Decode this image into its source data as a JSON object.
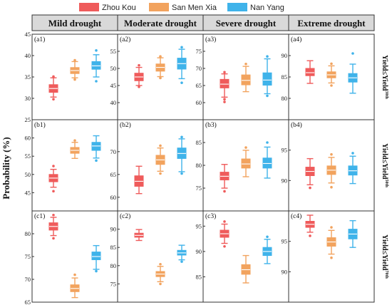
{
  "chart_data": {
    "type": "boxplot",
    "ylabel": "Probability (%)",
    "legend": [
      {
        "name": "Zhou Kou",
        "color": "#ef5b5b"
      },
      {
        "name": "San Men Xia",
        "color": "#f2a35e"
      },
      {
        "name": "Nan Yang",
        "color": "#3fb3ea"
      }
    ],
    "columns": [
      "Mild drought",
      "Moderate drought",
      "Severe  drought",
      "Extreme  drought"
    ],
    "rows": [
      {
        "label_pre": "Yield≤Yield",
        "label_sup": "30th"
      },
      {
        "label_pre": "Yield≤Yield",
        "label_sup": "50th"
      },
      {
        "label_pre": "Yield≤Yield",
        "label_sup": "70th"
      }
    ],
    "panels": [
      {
        "id": "(a1)",
        "row": 0,
        "col": 0,
        "ylim": [
          25,
          45
        ],
        "ticks": [
          25,
          30,
          35,
          40,
          45
        ],
        "tick_labels": [
          "25",
          "30",
          "35",
          "40",
          "45"
        ],
        "boxes": [
          {
            "series": "Zhou Kou",
            "whisker_low": 30.3,
            "q1": 31.4,
            "median": 32.3,
            "q3": 33.2,
            "whisker_high": 34.8,
            "outliers": [
              29.8,
              35.1
            ]
          },
          {
            "series": "San Men Xia",
            "whisker_low": 34.8,
            "q1": 35.8,
            "median": 36.5,
            "q3": 37.2,
            "whisker_high": 38.6,
            "outliers": [
              34.4,
              38.9
            ]
          },
          {
            "series": "Nan Yang",
            "whisker_low": 35.0,
            "q1": 36.8,
            "median": 37.6,
            "q3": 38.6,
            "whisker_high": 40.2,
            "outliers": [
              34.0,
              41.2
            ]
          }
        ]
      },
      {
        "id": "(a2)",
        "row": 0,
        "col": 1,
        "ylim": [
          35,
          60
        ],
        "ticks": [
          40,
          45,
          50,
          55
        ],
        "tick_labels": [
          "40",
          "45",
          "50",
          "55"
        ],
        "boxes": [
          {
            "series": "Zhou Kou",
            "whisker_low": 45.0,
            "q1": 46.4,
            "median": 47.5,
            "q3": 48.6,
            "whisker_high": 50.3,
            "outliers": [
              44.6,
              50.9
            ]
          },
          {
            "series": "San Men Xia",
            "whisker_low": 47.6,
            "q1": 49.2,
            "median": 50.3,
            "q3": 51.3,
            "whisker_high": 53.1,
            "outliers": [
              47.2,
              53.5
            ]
          },
          {
            "series": "Nan Yang",
            "whisker_low": 47.0,
            "q1": 49.8,
            "median": 51.4,
            "q3": 53.0,
            "whisker_high": 55.6,
            "outliers": [
              45.8,
              56.2
            ]
          }
        ]
      },
      {
        "id": "(a3)",
        "row": 0,
        "col": 2,
        "ylim": [
          55,
          80
        ],
        "ticks": [
          60,
          65,
          70,
          75
        ],
        "tick_labels": [
          "60",
          "65",
          "70",
          "75"
        ],
        "boxes": [
          {
            "series": "Zhou Kou",
            "whisker_low": 61.6,
            "q1": 64.3,
            "median": 65.4,
            "q3": 66.8,
            "whisker_high": 68.4,
            "outliers": [
              60.2,
              61.0,
              68.9
            ]
          },
          {
            "series": "San Men Xia",
            "whisker_low": 63.2,
            "q1": 65.2,
            "median": 66.5,
            "q3": 68.1,
            "whisker_high": 70.6,
            "outliers": [
              71.3
            ]
          },
          {
            "series": "Nan Yang",
            "whisker_low": 62.6,
            "q1": 65.1,
            "median": 66.6,
            "q3": 68.7,
            "whisker_high": 72.8,
            "outliers": [
              62.0,
              73.5
            ]
          }
        ]
      },
      {
        "id": "(a4)",
        "row": 0,
        "col": 3,
        "ylim": [
          75,
          95
        ],
        "ticks": [
          80,
          85,
          90
        ],
        "tick_labels": [
          "80",
          "85",
          "90"
        ],
        "boxes": [
          {
            "series": "Zhou Kou",
            "whisker_low": 83.5,
            "q1": 85.3,
            "median": 86.0,
            "q3": 87.0,
            "whisker_high": 88.8,
            "outliers": []
          },
          {
            "series": "San Men Xia",
            "whisker_low": 83.6,
            "q1": 84.8,
            "median": 85.5,
            "q3": 86.2,
            "whisker_high": 87.6,
            "outliers": [
              83.0,
              88.1
            ]
          },
          {
            "series": "Nan Yang",
            "whisker_low": 81.2,
            "q1": 83.8,
            "median": 84.8,
            "q3": 85.8,
            "whisker_high": 88.0,
            "outliers": [
              90.5
            ]
          }
        ]
      },
      {
        "id": "(b1)",
        "row": 1,
        "col": 0,
        "ylim": [
          40,
          65
        ],
        "ticks": [
          45,
          50,
          55,
          60
        ],
        "tick_labels": [
          "45",
          "50",
          "55",
          "60"
        ],
        "boxes": [
          {
            "series": "Zhou Kou",
            "whisker_low": 46.5,
            "q1": 48.0,
            "median": 49.0,
            "q3": 50.0,
            "whisker_high": 51.4,
            "outliers": [
              45.4,
              52.3
            ]
          },
          {
            "series": "San Men Xia",
            "whisker_low": 54.4,
            "q1": 55.8,
            "median": 56.6,
            "q3": 57.4,
            "whisker_high": 58.8,
            "outliers": [
              59.3
            ]
          },
          {
            "series": "Nan Yang",
            "whisker_low": 54.5,
            "q1": 56.6,
            "median": 57.8,
            "q3": 58.8,
            "whisker_high": 60.6,
            "outliers": [
              53.8
            ]
          }
        ]
      },
      {
        "id": "(b2)",
        "row": 1,
        "col": 1,
        "ylim": [
          57,
          77
        ],
        "ticks": [
          60,
          65,
          70
        ],
        "tick_labels": [
          "60",
          "65",
          "70"
        ],
        "boxes": [
          {
            "series": "Zhou Kou",
            "whisker_low": 60.8,
            "q1": 62.4,
            "median": 63.5,
            "q3": 64.7,
            "whisker_high": 66.8,
            "outliers": []
          },
          {
            "series": "San Men Xia",
            "whisker_low": 65.7,
            "q1": 67.2,
            "median": 68.2,
            "q3": 69.2,
            "whisker_high": 70.8,
            "outliers": [
              65.2,
              71.3
            ]
          },
          {
            "series": "Nan Yang",
            "whisker_low": 65.6,
            "q1": 68.5,
            "median": 69.6,
            "q3": 70.8,
            "whisker_high": 72.8,
            "outliers": [
              65.2,
              73.2
            ]
          }
        ]
      },
      {
        "id": "(b3)",
        "row": 1,
        "col": 2,
        "ylim": [
          70,
          90
        ],
        "ticks": [
          75,
          80,
          85
        ],
        "tick_labels": [
          "75",
          "80",
          "85"
        ],
        "boxes": [
          {
            "series": "Zhou Kou",
            "whisker_low": 75.0,
            "q1": 76.8,
            "median": 77.6,
            "q3": 78.5,
            "whisker_high": 80.2,
            "outliers": [
              74.3
            ]
          },
          {
            "series": "San Men Xia",
            "whisker_low": 77.5,
            "q1": 79.4,
            "median": 80.3,
            "q3": 81.4,
            "whisker_high": 83.3,
            "outliers": [
              83.9
            ]
          },
          {
            "series": "Nan Yang",
            "whisker_low": 77.2,
            "q1": 79.4,
            "median": 80.4,
            "q3": 81.6,
            "whisker_high": 84.0,
            "outliers": [
              85.0
            ]
          }
        ]
      },
      {
        "id": "(b4)",
        "row": 1,
        "col": 3,
        "ylim": [
          85,
          100
        ],
        "ticks": [
          90,
          95
        ],
        "tick_labels": [
          "90",
          "95"
        ],
        "boxes": [
          {
            "series": "Zhou Kou",
            "whisker_low": 89.3,
            "q1": 90.8,
            "median": 91.5,
            "q3": 92.2,
            "whisker_high": 93.6,
            "outliers": [
              88.8
            ]
          },
          {
            "series": "San Men Xia",
            "whisker_low": 89.6,
            "q1": 91.0,
            "median": 91.7,
            "q3": 92.4,
            "whisker_high": 93.8,
            "outliers": [
              88.9,
              94.3
            ]
          },
          {
            "series": "Nan Yang",
            "whisker_low": 89.5,
            "q1": 90.9,
            "median": 91.6,
            "q3": 92.4,
            "whisker_high": 94.0,
            "outliers": [
              94.5
            ]
          }
        ]
      },
      {
        "id": "(c1)",
        "row": 2,
        "col": 0,
        "ylim": [
          65,
          85
        ],
        "ticks": [
          65,
          70,
          75,
          80
        ],
        "tick_labels": [
          "65",
          "70",
          "75",
          "80"
        ],
        "boxes": [
          {
            "series": "Zhou Kou",
            "whisker_low": 79.6,
            "q1": 80.8,
            "median": 81.6,
            "q3": 82.4,
            "whisker_high": 83.6,
            "outliers": [
              79.0,
              84.1
            ]
          },
          {
            "series": "San Men Xia",
            "whisker_low": 66.0,
            "q1": 67.3,
            "median": 68.0,
            "q3": 68.8,
            "whisker_high": 70.3,
            "outliers": [
              71.0
            ]
          },
          {
            "series": "Nan Yang",
            "whisker_low": 72.2,
            "q1": 74.3,
            "median": 75.0,
            "q3": 76.0,
            "whisker_high": 77.4,
            "outliers": [
              71.8
            ]
          }
        ]
      },
      {
        "id": "(c2)",
        "row": 2,
        "col": 1,
        "ylim": [
          70,
          95
        ],
        "ticks": [
          75,
          80,
          85,
          90
        ],
        "tick_labels": [
          "75",
          "80",
          "85",
          "90"
        ],
        "boxes": [
          {
            "series": "Zhou Kou",
            "whisker_low": 86.9,
            "q1": 87.8,
            "median": 88.3,
            "q3": 88.9,
            "whisker_high": 89.9,
            "outliers": []
          },
          {
            "series": "San Men Xia",
            "whisker_low": 75.6,
            "q1": 77.0,
            "median": 77.7,
            "q3": 78.4,
            "whisker_high": 79.8,
            "outliers": [
              75.0,
              80.4
            ]
          },
          {
            "series": "Nan Yang",
            "whisker_low": 81.6,
            "q1": 82.9,
            "median": 83.5,
            "q3": 84.2,
            "whisker_high": 85.6,
            "outliers": [
              81.1
            ]
          }
        ]
      },
      {
        "id": "(c3)",
        "row": 2,
        "col": 2,
        "ylim": [
          80,
          98
        ],
        "ticks": [
          85,
          90,
          95
        ],
        "tick_labels": [
          "85",
          "90",
          "95"
        ],
        "boxes": [
          {
            "series": "Zhou Kou",
            "whisker_low": 91.6,
            "q1": 92.8,
            "median": 93.5,
            "q3": 94.2,
            "whisker_high": 95.4,
            "outliers": [
              91.0,
              95.9
            ]
          },
          {
            "series": "San Men Xia",
            "whisker_low": 83.8,
            "q1": 85.5,
            "median": 86.4,
            "q3": 87.4,
            "whisker_high": 89.2,
            "outliers": []
          },
          {
            "series": "Nan Yang",
            "whisker_low": 87.6,
            "q1": 89.2,
            "median": 90.0,
            "q3": 90.8,
            "whisker_high": 92.4,
            "outliers": [
              92.9
            ]
          }
        ]
      },
      {
        "id": "(c4)",
        "row": 2,
        "col": 3,
        "ylim": [
          85,
          100
        ],
        "ticks": [
          90,
          95
        ],
        "tick_labels": [
          "90",
          "95"
        ],
        "boxes": [
          {
            "series": "Zhou Kou",
            "whisker_low": 96.5,
            "q1": 97.3,
            "median": 97.8,
            "q3": 98.3,
            "whisker_high": 99.3,
            "outliers": [
              95.9
            ]
          },
          {
            "series": "San Men Xia",
            "whisker_low": 92.9,
            "q1": 94.2,
            "median": 94.9,
            "q3": 95.6,
            "whisker_high": 96.8,
            "outliers": [
              92.3,
              97.3
            ]
          },
          {
            "series": "Nan Yang",
            "whisker_low": 94.0,
            "q1": 95.4,
            "median": 96.2,
            "q3": 97.0,
            "whisker_high": 98.4,
            "outliers": []
          }
        ]
      }
    ]
  }
}
